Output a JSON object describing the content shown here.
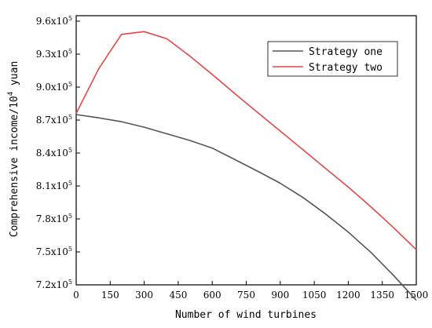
{
  "chart_data": {
    "type": "line",
    "title": "",
    "xlabel": "Number of wind turbines",
    "ylabel": "Comprehensive income/10",
    "ylabel_sup": "4",
    "ylabel_suffix": " yuan",
    "xlim": [
      0,
      1500
    ],
    "ylim": [
      720000,
      965000
    ],
    "x_ticks": [
      0,
      150,
      300,
      450,
      600,
      750,
      900,
      1050,
      1200,
      1350,
      1500
    ],
    "x_tick_labels": [
      "0",
      "150",
      "300",
      "450",
      "600",
      "750",
      "900",
      "1050",
      "1200",
      "1350",
      "1500"
    ],
    "y_ticks": [
      720000,
      750000,
      780000,
      810000,
      840000,
      870000,
      900000,
      930000,
      960000
    ],
    "y_tick_labels": [
      {
        "base": "7.2x10",
        "exp": "5"
      },
      {
        "base": "7.5x10",
        "exp": "5"
      },
      {
        "base": "7.8x10",
        "exp": "5"
      },
      {
        "base": "8.1x10",
        "exp": "5"
      },
      {
        "base": "8.4x10",
        "exp": "5"
      },
      {
        "base": "8.7x10",
        "exp": "5"
      },
      {
        "base": "9.0x10",
        "exp": "5"
      },
      {
        "base": "9.3x10",
        "exp": "5"
      },
      {
        "base": "9.6x10",
        "exp": "5"
      }
    ],
    "grid": false,
    "legend_position": "top-right",
    "series": [
      {
        "name": "Strategy one",
        "color": "#555555",
        "x": [
          0,
          100,
          200,
          300,
          400,
          500,
          600,
          700,
          800,
          900,
          1000,
          1100,
          1200,
          1300,
          1400,
          1500
        ],
        "values": [
          875000,
          872000,
          868500,
          863500,
          857500,
          851500,
          844500,
          834000,
          823500,
          812500,
          799500,
          784500,
          768000,
          749500,
          728500,
          706000
        ]
      },
      {
        "name": "Strategy two",
        "color": "#e84545",
        "x": [
          0,
          100,
          200,
          300,
          400,
          500,
          600,
          700,
          800,
          900,
          1000,
          1100,
          1200,
          1300,
          1400,
          1500
        ],
        "values": [
          876000,
          917000,
          948000,
          950500,
          944000,
          928500,
          911500,
          894000,
          877000,
          860000,
          843000,
          826000,
          809000,
          791000,
          772000,
          752000
        ]
      }
    ]
  }
}
